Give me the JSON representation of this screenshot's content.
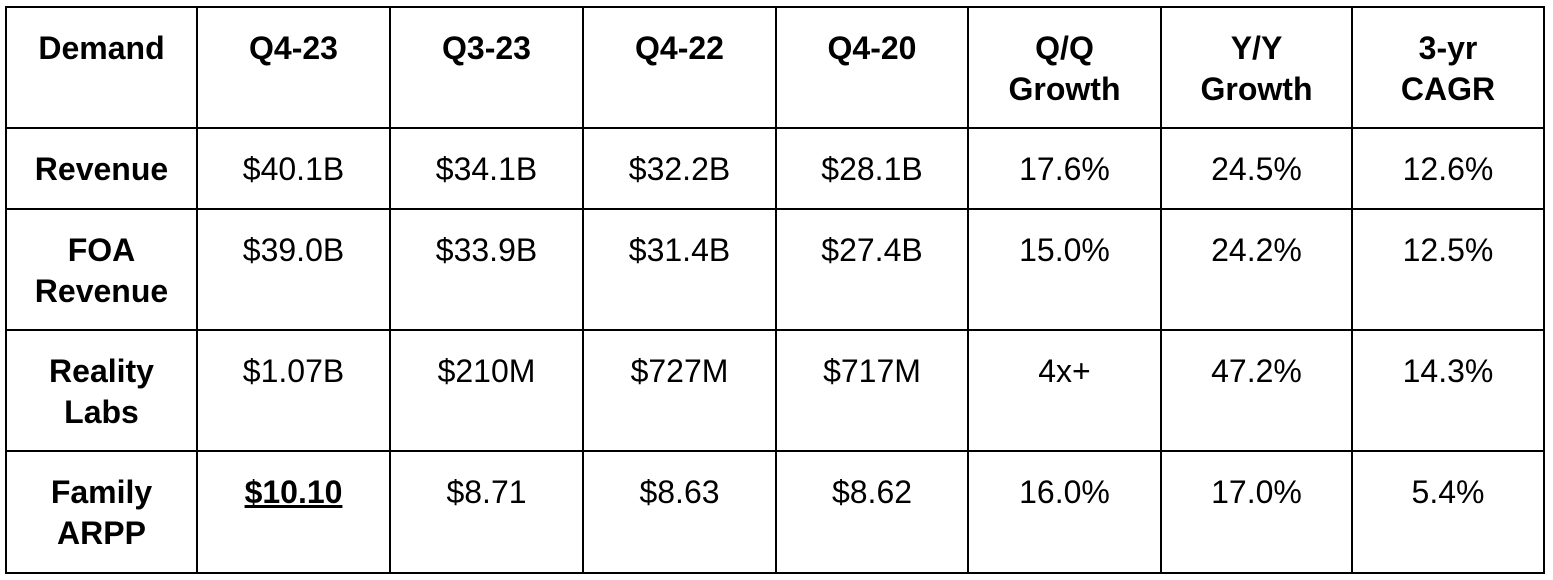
{
  "table": {
    "header": [
      "Demand",
      "Q4-23",
      "Q3-23",
      "Q4-22",
      "Q4-20",
      "Q/Q\nGrowth",
      "Y/Y\nGrowth",
      "3-yr\nCAGR"
    ],
    "rows": [
      [
        "Revenue",
        "$40.1B",
        "$34.1B",
        "$32.2B",
        "$28.1B",
        "17.6%",
        "24.5%",
        "12.6%"
      ],
      [
        "FOA\nRevenue",
        "$39.0B",
        "$33.9B",
        "$31.4B",
        "$27.4B",
        "15.0%",
        "24.2%",
        "12.5%"
      ],
      [
        "Reality\nLabs",
        "$1.07B",
        "$210M",
        "$727M",
        "$717M",
        "4x+",
        "47.2%",
        "14.3%"
      ],
      [
        "Family\nARPP",
        "$10.10",
        "$8.71",
        "$8.63",
        "$8.62",
        "16.0%",
        "17.0%",
        "5.4%"
      ]
    ]
  }
}
